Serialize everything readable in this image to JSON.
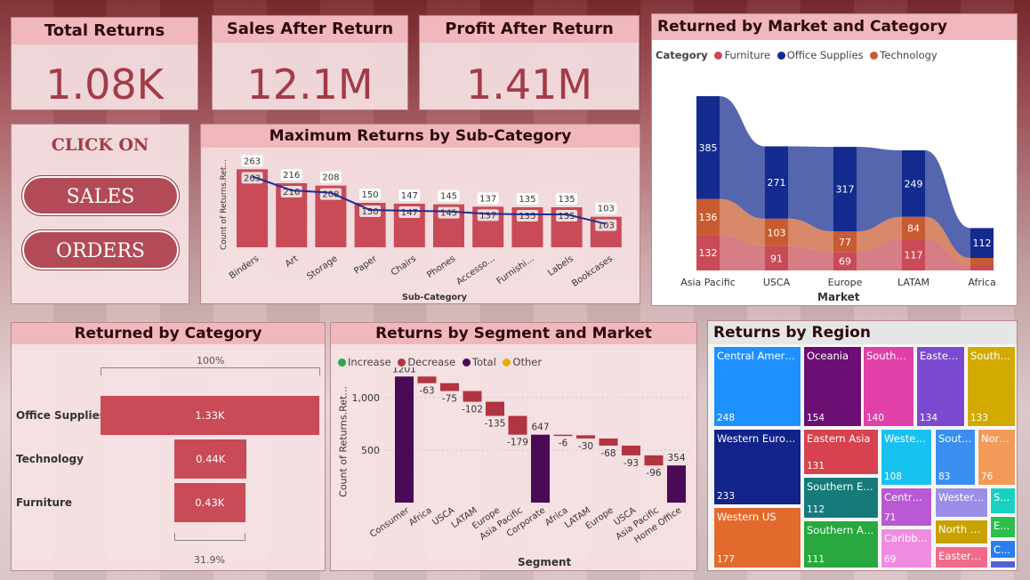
{
  "kpis": {
    "total_returns": {
      "title": "Total Returns",
      "value": "1.08K"
    },
    "sales_after_return": {
      "title": "Sales After Return",
      "value": "12.1M"
    },
    "profit_after_return": {
      "title": "Profit After Return",
      "value": "1.41M"
    }
  },
  "nav": {
    "heading": "CLICK ON",
    "sales": "SALES",
    "orders": "ORDERS"
  },
  "subcat": {
    "title": "Maximum Returns by Sub-Category",
    "xlabel": "Sub-Category",
    "ylabel": "Count of Returns.Ret...",
    "categories": [
      "Binders",
      "Art",
      "Storage",
      "Paper",
      "Chairs",
      "Phones",
      "Accesso...",
      "Furnishi...",
      "Labels",
      "Bookcases"
    ],
    "values": [
      263,
      216,
      208,
      150,
      147,
      145,
      137,
      135,
      135,
      103
    ],
    "color": "#c84b57",
    "line_color": "#1f2f8a"
  },
  "market_cat": {
    "title": "Returned by Market and Category",
    "legend_title": "Category",
    "legend": [
      {
        "name": "Furniture",
        "color": "#c84b57"
      },
      {
        "name": "Office Supplies",
        "color": "#132a8f"
      },
      {
        "name": "Technology",
        "color": "#c85b30"
      }
    ],
    "xlabel": "Market",
    "markets": [
      "Asia Pacific",
      "USCA",
      "Europe",
      "LATAM",
      "Africa"
    ],
    "furniture": [
      132,
      91,
      69,
      117,
      null
    ],
    "technology": [
      136,
      103,
      77,
      84,
      null
    ],
    "office": [
      385,
      271,
      317,
      249,
      112
    ]
  },
  "by_category": {
    "title": "Returned by Category",
    "top_pct": "100%",
    "bottom_pct": "31.9%",
    "rows": [
      {
        "name": "Office Supplies",
        "value": 1.33,
        "label": "1.33K"
      },
      {
        "name": "Technology",
        "value": 0.44,
        "label": "0.44K"
      },
      {
        "name": "Furniture",
        "value": 0.43,
        "label": "0.43K"
      }
    ]
  },
  "waterfall": {
    "title": "Returns by Segment and Market",
    "legend": [
      {
        "name": "Increase",
        "color": "#27a84a"
      },
      {
        "name": "Decrease",
        "color": "#b23440"
      },
      {
        "name": "Total",
        "color": "#4a0a55"
      },
      {
        "name": "Other",
        "color": "#e0b000"
      }
    ],
    "ylabel": "Count of Returns.Ret...",
    "xlabel": "Segment",
    "yticks": [
      {
        "v": 500,
        "label": "500"
      },
      {
        "v": 1000,
        "label": "1,000"
      }
    ],
    "steps": [
      {
        "label": "Consumer",
        "type": "total",
        "value": 1201,
        "text": "1201"
      },
      {
        "label": "Africa",
        "type": "dec",
        "value": -63,
        "text": "-63"
      },
      {
        "label": "USCA",
        "type": "dec",
        "value": -75,
        "text": "-75"
      },
      {
        "label": "LATAM",
        "type": "dec",
        "value": -102,
        "text": "-102"
      },
      {
        "label": "Europe",
        "type": "dec",
        "value": -135,
        "text": "-135"
      },
      {
        "label": "Asia Pacific",
        "type": "dec",
        "value": -179,
        "text": "-179"
      },
      {
        "label": "Corporate",
        "type": "total",
        "value": 647,
        "text": "647"
      },
      {
        "label": "Africa",
        "type": "dec",
        "value": -6,
        "text": "-6"
      },
      {
        "label": "LATAM",
        "type": "dec",
        "value": -30,
        "text": "-30"
      },
      {
        "label": "Europe",
        "type": "dec",
        "value": -68,
        "text": "-68"
      },
      {
        "label": "USCA",
        "type": "dec",
        "value": -93,
        "text": "-93"
      },
      {
        "label": "Asia Pacific",
        "type": "dec",
        "value": -96,
        "text": "-96"
      },
      {
        "label": "Home Office",
        "type": "total",
        "value": 354,
        "text": "354"
      }
    ]
  },
  "regions": {
    "title": "Returns by Region",
    "items": [
      {
        "name": "Central America",
        "value": "248",
        "color": "#1e90ff"
      },
      {
        "name": "Western Europe",
        "value": "233",
        "color": "#12238a"
      },
      {
        "name": "Western US",
        "value": "177",
        "color": "#e26a2c"
      },
      {
        "name": "Oceania",
        "value": "154",
        "color": "#6b0f74"
      },
      {
        "name": "Eastern Asia",
        "value": "131",
        "color": "#d6424f"
      },
      {
        "name": "Southern Eu...",
        "value": "112",
        "color": "#167a7a"
      },
      {
        "name": "Southern Asia",
        "value": "111",
        "color": "#28a83e"
      },
      {
        "name": "Southe...",
        "value": "140",
        "color": "#e040a8"
      },
      {
        "name": "Eastern...",
        "value": "134",
        "color": "#7b4ad1"
      },
      {
        "name": "South ...",
        "value": "133",
        "color": "#d3aa00"
      },
      {
        "name": "Western...",
        "value": "108",
        "color": "#17c1f0"
      },
      {
        "name": "Sout...",
        "value": "83",
        "color": "#3a8ff0"
      },
      {
        "name": "Nort...",
        "value": "76",
        "color": "#f29a57"
      },
      {
        "name": "Central...",
        "value": "71",
        "color": "#b85ad3"
      },
      {
        "name": "Caribb...",
        "value": "69",
        "color": "#f08ce0"
      },
      {
        "name": "Western...",
        "value": "",
        "color": "#9a8ee8"
      },
      {
        "name": "North Af...",
        "value": "",
        "color": "#c7a200"
      },
      {
        "name": "Eastern ...",
        "value": "",
        "color": "#f26a8a"
      },
      {
        "name": "S...",
        "value": "",
        "color": "#18d1c0"
      },
      {
        "name": "E...",
        "value": "",
        "color": "#2cbf4a"
      },
      {
        "name": "C...",
        "value": "",
        "color": "#2a7ef0"
      },
      {
        "name": "",
        "value": "",
        "color": "#4f62d0"
      }
    ]
  }
}
